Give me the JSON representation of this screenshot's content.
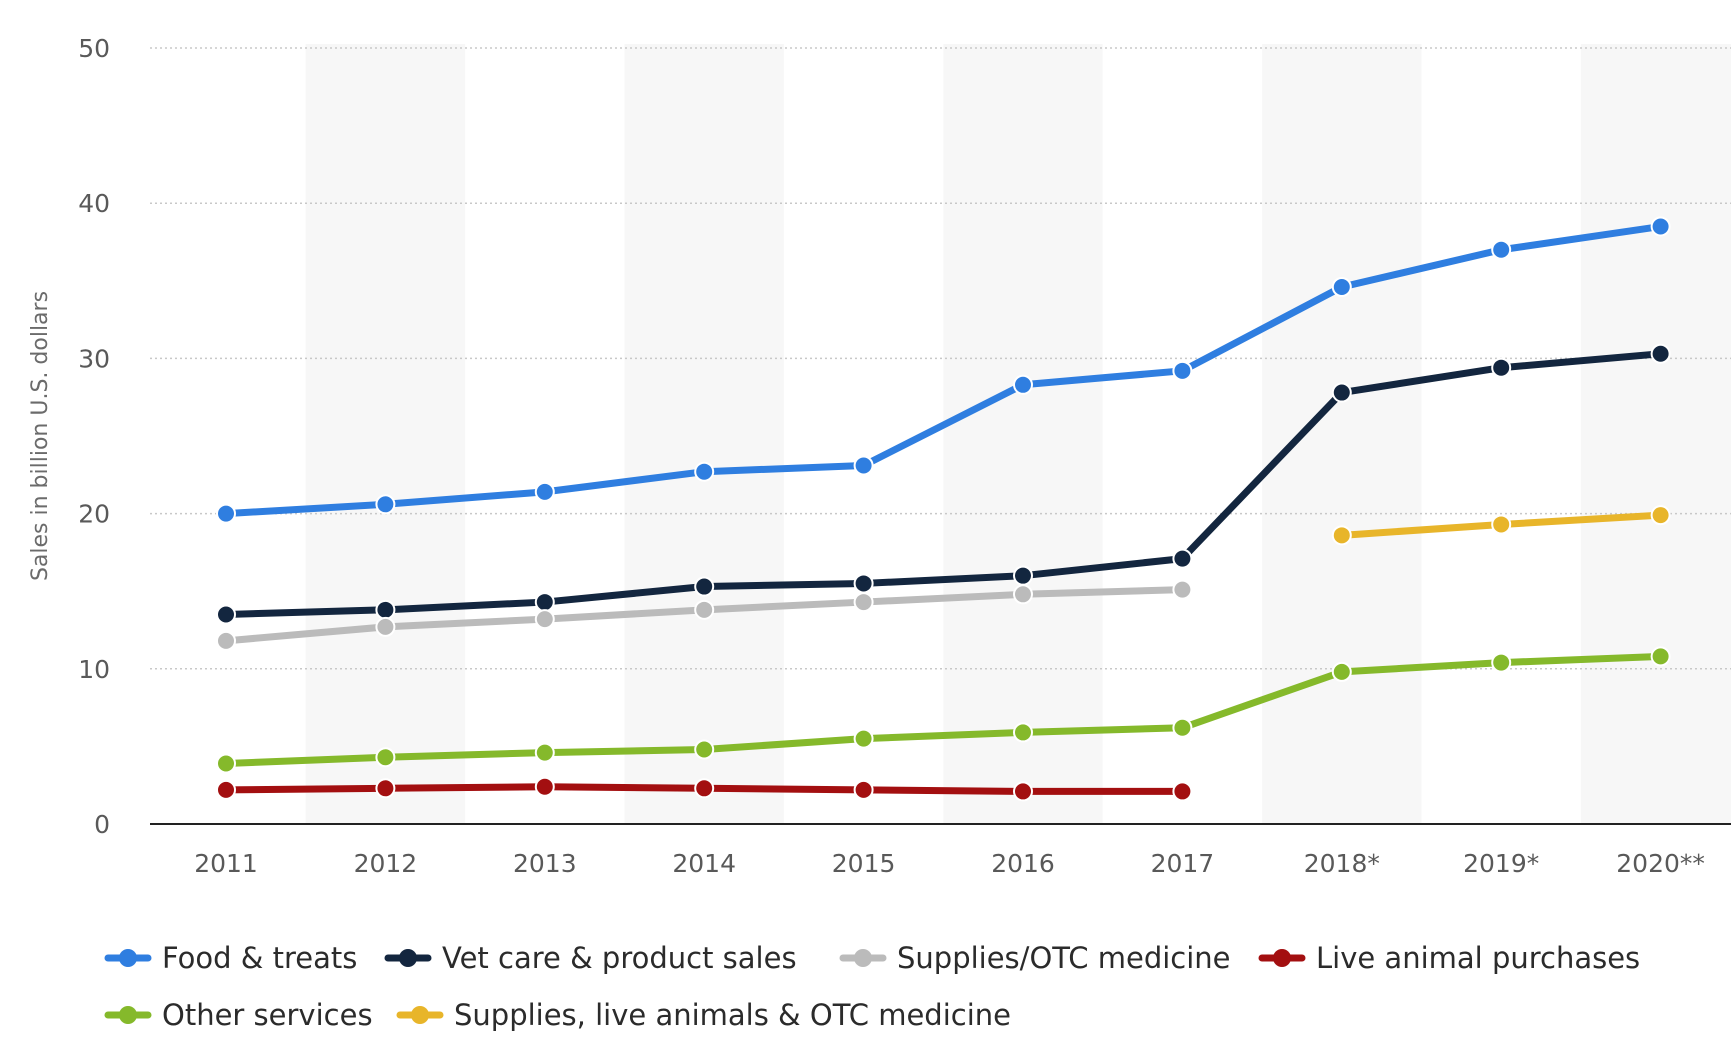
{
  "chart_data": {
    "type": "line",
    "title": "",
    "xlabel": "",
    "ylabel": "Sales in billion U.S. dollars",
    "ylim": [
      0,
      50
    ],
    "yticks": [
      0,
      10,
      20,
      30,
      40,
      50
    ],
    "grid": true,
    "legend_position": "bottom",
    "categories": [
      "2011",
      "2012",
      "2013",
      "2014",
      "2015",
      "2016",
      "2017",
      "2018*",
      "2019*",
      "2020**"
    ],
    "series": [
      {
        "name": "Food & treats",
        "color": "#2f7ee0",
        "values": [
          20.0,
          20.6,
          21.4,
          22.7,
          23.1,
          28.3,
          29.2,
          34.6,
          37.0,
          38.5
        ]
      },
      {
        "name": "Vet care & product sales",
        "color": "#13263f",
        "values": [
          13.5,
          13.8,
          14.3,
          15.3,
          15.5,
          16.0,
          17.1,
          27.8,
          29.4,
          30.3
        ]
      },
      {
        "name": "Supplies/OTC medicine",
        "color": "#bbbbbb",
        "values": [
          11.8,
          12.7,
          13.2,
          13.8,
          14.3,
          14.8,
          15.1,
          null,
          null,
          null
        ]
      },
      {
        "name": "Live animal purchases",
        "color": "#a30f10",
        "values": [
          2.2,
          2.3,
          2.4,
          2.3,
          2.2,
          2.1,
          2.1,
          null,
          null,
          null
        ]
      },
      {
        "name": "Other services",
        "color": "#85b92b",
        "values": [
          3.9,
          4.3,
          4.6,
          4.8,
          5.5,
          5.9,
          6.2,
          9.8,
          10.4,
          10.8
        ]
      },
      {
        "name": "Supplies, live animals & OTC medicine",
        "color": "#e8b52a",
        "values": [
          null,
          null,
          null,
          null,
          null,
          null,
          null,
          18.6,
          19.3,
          19.9
        ]
      }
    ]
  }
}
